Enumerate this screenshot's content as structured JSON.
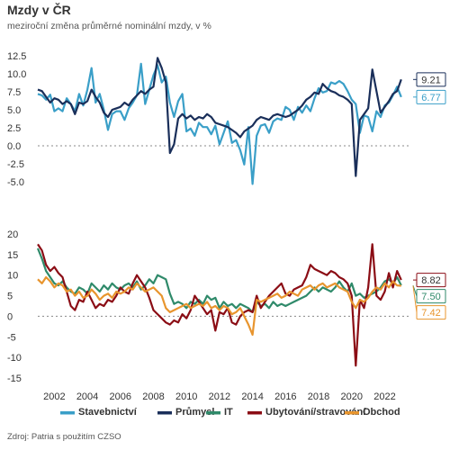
{
  "header": {
    "title": "Mzdy v ČR",
    "subtitle": "meziroční změna průměrné nominální mzdy, v %"
  },
  "footer": {
    "source": "Zdroj: Patria s použitím CZSO"
  },
  "colors": {
    "Stavebnictví": "#3a9fc8",
    "Průmysl": "#1a2f5a",
    "IT": "#2f8a6a",
    "Ubytování/stravování": "#8b0d15",
    "Obchod": "#e8952e"
  },
  "chart_data": [
    {
      "type": "line",
      "x_label_years": [
        "2002",
        "2004",
        "2006",
        "2008",
        "2010",
        "2012",
        "2014",
        "2016",
        "2018",
        "2020",
        "2022"
      ],
      "x_range": [
        2001.0,
        2023.5
      ],
      "ylim": [
        -5.5,
        12.5
      ],
      "yticks": [
        "12.5",
        "10.0",
        "7.5",
        "5.0",
        "2.5",
        "0.0",
        "-2.5",
        "-5.0"
      ],
      "ytick_values": [
        12.5,
        10.0,
        7.5,
        5.0,
        2.5,
        0.0,
        -2.5,
        -5.0
      ],
      "reference_line": 0,
      "series": [
        {
          "name": "Stavebnictví",
          "x": [
            2001.0,
            2001.25,
            2001.5,
            2001.75,
            2002.0,
            2002.25,
            2002.5,
            2002.75,
            2003.0,
            2003.25,
            2003.5,
            2003.75,
            2004.0,
            2004.25,
            2004.5,
            2004.75,
            2005.0,
            2005.25,
            2005.5,
            2005.75,
            2006.0,
            2006.25,
            2006.5,
            2006.75,
            2007.0,
            2007.25,
            2007.5,
            2007.75,
            2008.0,
            2008.25,
            2008.5,
            2008.75,
            2009.0,
            2009.25,
            2009.5,
            2009.75,
            2010.0,
            2010.25,
            2010.5,
            2010.75,
            2011.0,
            2011.25,
            2011.5,
            2011.75,
            2012.0,
            2012.25,
            2012.5,
            2012.75,
            2013.0,
            2013.25,
            2013.5,
            2013.75,
            2014.0,
            2014.25,
            2014.5,
            2014.75,
            2015.0,
            2015.25,
            2015.5,
            2015.75,
            2016.0,
            2016.25,
            2016.5,
            2016.75,
            2017.0,
            2017.25,
            2017.5,
            2017.75,
            2018.0,
            2018.25,
            2018.5,
            2018.75,
            2019.0,
            2019.25,
            2019.5,
            2019.75,
            2020.0,
            2020.25,
            2020.5,
            2020.75,
            2021.0,
            2021.25,
            2021.5,
            2021.75,
            2022.0,
            2022.25,
            2022.5,
            2022.75,
            2023.0
          ],
          "values": [
            7.2,
            7.0,
            6.4,
            7.1,
            4.8,
            5.2,
            4.8,
            6.6,
            5.8,
            4.8,
            7.2,
            5.6,
            7.8,
            10.8,
            6.0,
            7.2,
            5.0,
            2.2,
            4.4,
            4.8,
            4.8,
            3.6,
            5.2,
            6.0,
            7.0,
            11.4,
            5.8,
            7.8,
            9.8,
            11.2,
            8.8,
            9.6,
            6.0,
            4.0,
            6.2,
            7.2,
            2.0,
            2.4,
            1.4,
            3.2,
            2.6,
            2.6,
            1.6,
            2.8,
            0.2,
            1.8,
            3.4,
            0.4,
            0.8,
            -0.6,
            -2.6,
            2.6,
            -5.3,
            1.4,
            2.8,
            3.0,
            1.8,
            3.4,
            3.8,
            3.6,
            5.4,
            5.0,
            3.6,
            5.4,
            4.6,
            5.6,
            4.8,
            6.6,
            8.0,
            7.4,
            7.6,
            8.8,
            8.6,
            9.0,
            8.6,
            7.6,
            6.4,
            5.8,
            1.8,
            4.2,
            4.0,
            2.0,
            4.8,
            4.0,
            5.6,
            6.0,
            7.0,
            8.2,
            6.77
          ]
        },
        {
          "name": "Průmysl",
          "x": [
            2001.0,
            2001.25,
            2001.5,
            2001.75,
            2002.0,
            2002.25,
            2002.5,
            2002.75,
            2003.0,
            2003.25,
            2003.5,
            2003.75,
            2004.0,
            2004.25,
            2004.5,
            2004.75,
            2005.0,
            2005.25,
            2005.5,
            2005.75,
            2006.0,
            2006.25,
            2006.5,
            2006.75,
            2007.0,
            2007.25,
            2007.5,
            2007.75,
            2008.0,
            2008.25,
            2008.5,
            2008.75,
            2009.0,
            2009.25,
            2009.5,
            2009.75,
            2010.0,
            2010.25,
            2010.5,
            2010.75,
            2011.0,
            2011.25,
            2011.5,
            2011.75,
            2012.0,
            2012.25,
            2012.5,
            2012.75,
            2013.0,
            2013.25,
            2013.5,
            2013.75,
            2014.0,
            2014.25,
            2014.5,
            2014.75,
            2015.0,
            2015.25,
            2015.5,
            2015.75,
            2016.0,
            2016.25,
            2016.5,
            2016.75,
            2017.0,
            2017.25,
            2017.5,
            2017.75,
            2018.0,
            2018.25,
            2018.5,
            2018.75,
            2019.0,
            2019.25,
            2019.5,
            2019.75,
            2020.0,
            2020.25,
            2020.5,
            2020.75,
            2021.0,
            2021.25,
            2021.5,
            2021.75,
            2022.0,
            2022.25,
            2022.5,
            2022.75,
            2023.0
          ],
          "values": [
            7.8,
            7.6,
            6.8,
            6.0,
            6.6,
            6.4,
            5.8,
            6.2,
            5.8,
            4.4,
            6.0,
            5.8,
            6.2,
            7.8,
            6.8,
            6.0,
            4.6,
            4.0,
            5.0,
            5.2,
            5.4,
            6.0,
            5.6,
            6.4,
            7.0,
            7.6,
            7.2,
            7.8,
            8.2,
            12.2,
            10.8,
            8.8,
            -1.0,
            0.2,
            3.8,
            4.4,
            3.8,
            4.2,
            3.6,
            4.0,
            3.8,
            4.4,
            4.0,
            3.2,
            3.0,
            2.8,
            2.6,
            2.2,
            1.8,
            1.2,
            2.0,
            2.4,
            2.8,
            3.6,
            4.0,
            3.8,
            3.6,
            4.2,
            4.4,
            4.2,
            4.0,
            4.2,
            4.6,
            5.0,
            5.6,
            6.4,
            6.8,
            7.4,
            7.2,
            8.6,
            8.0,
            7.6,
            7.4,
            7.0,
            6.8,
            6.4,
            5.8,
            -4.2,
            3.6,
            4.4,
            5.2,
            10.6,
            7.6,
            4.6,
            5.4,
            6.2,
            7.2,
            7.6,
            9.21
          ]
        }
      ]
    },
    {
      "type": "line",
      "x_label_years": [
        "2002",
        "2004",
        "2006",
        "2008",
        "2010",
        "2012",
        "2014",
        "2016",
        "2018",
        "2020",
        "2022"
      ],
      "x_range": [
        2001.0,
        2023.5
      ],
      "ylim": [
        -15.0,
        20.0
      ],
      "yticks": [
        "20",
        "15",
        "10",
        "5",
        "0",
        "-5",
        "-10",
        "-15"
      ],
      "ytick_values": [
        20,
        15,
        10,
        5,
        0,
        -5,
        -10,
        -15
      ],
      "reference_line": 0,
      "series": [
        {
          "name": "IT",
          "x": [
            2001.0,
            2001.25,
            2001.5,
            2001.75,
            2002.0,
            2002.25,
            2002.5,
            2002.75,
            2003.0,
            2003.25,
            2003.5,
            2003.75,
            2004.0,
            2004.25,
            2004.5,
            2004.75,
            2005.0,
            2005.25,
            2005.5,
            2005.75,
            2006.0,
            2006.25,
            2006.5,
            2006.75,
            2007.0,
            2007.25,
            2007.5,
            2007.75,
            2008.0,
            2008.25,
            2008.5,
            2008.75,
            2009.0,
            2009.25,
            2009.5,
            2009.75,
            2010.0,
            2010.25,
            2010.5,
            2010.75,
            2011.0,
            2011.25,
            2011.5,
            2011.75,
            2012.0,
            2012.25,
            2012.5,
            2012.75,
            2013.0,
            2013.25,
            2013.5,
            2013.75,
            2014.0,
            2014.25,
            2014.5,
            2014.75,
            2015.0,
            2015.25,
            2015.5,
            2015.75,
            2016.0,
            2016.25,
            2016.5,
            2016.75,
            2017.0,
            2017.25,
            2017.5,
            2017.75,
            2018.0,
            2018.25,
            2018.5,
            2018.75,
            2019.0,
            2019.25,
            2019.5,
            2019.75,
            2020.0,
            2020.25,
            2020.5,
            2020.75,
            2021.0,
            2021.25,
            2021.5,
            2021.75,
            2022.0,
            2022.25,
            2022.5,
            2022.75,
            2023.0
          ],
          "values": [
            16.5,
            14.0,
            11.0,
            9.5,
            8.0,
            7.5,
            8.5,
            7.0,
            6.0,
            5.5,
            7.0,
            6.5,
            5.5,
            8.0,
            7.0,
            6.0,
            7.5,
            6.5,
            8.0,
            7.0,
            6.5,
            7.5,
            8.0,
            7.0,
            8.5,
            6.5,
            7.5,
            9.0,
            8.0,
            10.0,
            9.5,
            9.0,
            5.5,
            3.0,
            3.5,
            3.0,
            2.0,
            3.5,
            3.0,
            4.0,
            3.0,
            5.0,
            4.0,
            4.5,
            2.0,
            3.5,
            2.5,
            3.0,
            2.0,
            3.0,
            2.5,
            2.0,
            1.0,
            3.5,
            2.5,
            3.0,
            2.0,
            3.5,
            2.5,
            3.0,
            2.5,
            3.0,
            3.5,
            4.0,
            4.5,
            5.0,
            6.0,
            7.0,
            6.0,
            7.0,
            6.5,
            6.0,
            7.0,
            8.5,
            7.0,
            6.0,
            8.0,
            5.0,
            5.5,
            4.5,
            5.0,
            5.5,
            6.0,
            7.0,
            8.5,
            9.0,
            8.0,
            9.5,
            7.5
          ]
        },
        {
          "name": "Ubytování/stravování",
          "x": [
            2001.0,
            2001.25,
            2001.5,
            2001.75,
            2002.0,
            2002.25,
            2002.5,
            2002.75,
            2003.0,
            2003.25,
            2003.5,
            2003.75,
            2004.0,
            2004.25,
            2004.5,
            2004.75,
            2005.0,
            2005.25,
            2005.5,
            2005.75,
            2006.0,
            2006.25,
            2006.5,
            2006.75,
            2007.0,
            2007.25,
            2007.5,
            2007.75,
            2008.0,
            2008.25,
            2008.5,
            2008.75,
            2009.0,
            2009.25,
            2009.5,
            2009.75,
            2010.0,
            2010.25,
            2010.5,
            2010.75,
            2011.0,
            2011.25,
            2011.5,
            2011.75,
            2012.0,
            2012.25,
            2012.5,
            2012.75,
            2013.0,
            2013.25,
            2013.5,
            2013.75,
            2014.0,
            2014.25,
            2014.5,
            2014.75,
            2015.0,
            2015.25,
            2015.5,
            2015.75,
            2016.0,
            2016.25,
            2016.5,
            2016.75,
            2017.0,
            2017.25,
            2017.5,
            2017.75,
            2018.0,
            2018.25,
            2018.5,
            2018.75,
            2019.0,
            2019.25,
            2019.5,
            2019.75,
            2020.0,
            2020.25,
            2020.5,
            2020.75,
            2021.0,
            2021.25,
            2021.5,
            2021.75,
            2022.0,
            2022.25,
            2022.5,
            2022.75,
            2023.0
          ],
          "values": [
            17.5,
            16.0,
            12.5,
            11.0,
            12.0,
            10.5,
            9.5,
            6.0,
            2.5,
            1.5,
            4.0,
            3.5,
            6.0,
            4.0,
            2.0,
            3.0,
            2.5,
            4.0,
            3.5,
            5.0,
            7.0,
            6.0,
            5.5,
            8.0,
            10.0,
            8.5,
            7.0,
            4.5,
            1.5,
            0.5,
            -0.5,
            -1.5,
            -2.0,
            -1.0,
            -1.5,
            0.5,
            -0.5,
            1.5,
            5.0,
            3.5,
            2.0,
            0.5,
            1.5,
            -3.5,
            1.0,
            0.5,
            2.0,
            -1.5,
            -2.0,
            0.0,
            1.0,
            1.5,
            1.0,
            5.0,
            2.0,
            3.5,
            5.0,
            6.0,
            7.0,
            8.0,
            5.5,
            5.0,
            6.5,
            7.0,
            7.5,
            9.5,
            12.5,
            11.5,
            11.0,
            10.5,
            10.0,
            11.0,
            10.5,
            9.5,
            9.0,
            8.0,
            5.0,
            -12.0,
            4.0,
            2.0,
            7.0,
            17.5,
            5.0,
            4.0,
            6.0,
            10.5,
            7.0,
            11.0,
            8.82
          ]
        },
        {
          "name": "Obchod",
          "x": [
            2001.0,
            2001.25,
            2001.5,
            2001.75,
            2002.0,
            2002.25,
            2002.5,
            2002.75,
            2003.0,
            2003.25,
            2003.5,
            2003.75,
            2004.0,
            2004.25,
            2004.5,
            2004.75,
            2005.0,
            2005.25,
            2005.5,
            2005.75,
            2006.0,
            2006.25,
            2006.5,
            2006.75,
            2007.0,
            2007.25,
            2007.5,
            2007.75,
            2008.0,
            2008.25,
            2008.5,
            2008.75,
            2009.0,
            2009.25,
            2009.5,
            2009.75,
            2010.0,
            2010.25,
            2010.5,
            2010.75,
            2011.0,
            2011.25,
            2011.5,
            2011.75,
            2012.0,
            2012.25,
            2012.5,
            2012.75,
            2013.0,
            2013.25,
            2013.5,
            2013.75,
            2014.0,
            2014.25,
            2014.5,
            2014.75,
            2015.0,
            2015.25,
            2015.5,
            2015.75,
            2016.0,
            2016.25,
            2016.5,
            2016.75,
            2017.0,
            2017.25,
            2017.5,
            2017.75,
            2018.0,
            2018.25,
            2018.5,
            2018.75,
            2019.0,
            2019.25,
            2019.5,
            2019.75,
            2020.0,
            2020.25,
            2020.5,
            2020.75,
            2021.0,
            2021.25,
            2021.5,
            2021.75,
            2022.0,
            2022.25,
            2022.5,
            2022.75,
            2023.0
          ],
          "values": [
            9.0,
            8.0,
            9.5,
            8.5,
            7.0,
            8.0,
            7.5,
            6.0,
            6.5,
            5.0,
            6.0,
            4.5,
            5.0,
            6.5,
            5.5,
            4.0,
            5.0,
            5.5,
            4.5,
            6.0,
            5.5,
            6.0,
            7.0,
            6.5,
            8.0,
            7.0,
            6.0,
            6.5,
            7.0,
            6.0,
            5.0,
            2.0,
            1.0,
            1.5,
            2.0,
            2.5,
            3.0,
            2.0,
            2.5,
            3.0,
            2.5,
            3.5,
            2.0,
            2.5,
            1.5,
            2.5,
            2.0,
            0.5,
            1.0,
            2.0,
            0.0,
            -2.0,
            -4.5,
            4.0,
            3.5,
            4.0,
            4.5,
            5.0,
            5.5,
            4.5,
            5.0,
            6.0,
            5.5,
            5.0,
            6.5,
            7.0,
            7.5,
            6.5,
            7.5,
            8.0,
            7.0,
            7.5,
            8.0,
            7.0,
            6.5,
            6.0,
            3.5,
            2.0,
            4.0,
            3.5,
            4.5,
            6.0,
            7.0,
            6.5,
            8.0,
            7.0,
            8.5,
            7.5,
            7.42
          ]
        }
      ]
    }
  ],
  "callouts": {
    "top": [
      {
        "series": "Průmysl",
        "label": "9.21"
      },
      {
        "series": "Stavebnictví",
        "label": "6.77"
      }
    ],
    "bottom": [
      {
        "series": "Ubytování/stravování",
        "label": "8.82"
      },
      {
        "series": "IT",
        "label": "7.50"
      },
      {
        "series": "Obchod",
        "label": "7.42"
      }
    ]
  },
  "legend": {
    "position": "bottom",
    "items": [
      "Stavebnictví",
      "Průmysl",
      "IT",
      "Ubytování/stravování",
      "Obchod"
    ]
  }
}
